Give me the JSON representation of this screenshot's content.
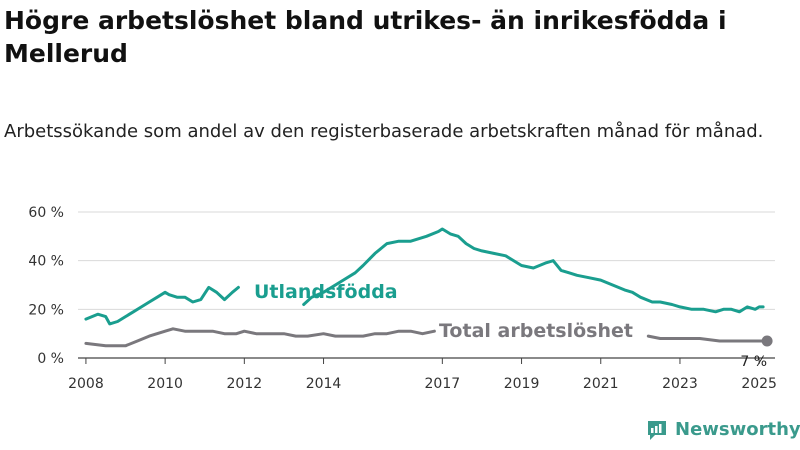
{
  "title": "Högre arbetslöshet bland utrikes- än inrikesfödda i Mellerud",
  "subtitle": "Arbetssökande som andel av den registerbaserade arbetskraften månad för månad.",
  "brand": {
    "name": "Newsworthy",
    "icon": "newsworthy-logo-icon"
  },
  "colors": {
    "foreign": "#1a9e8f",
    "total": "#7a787d",
    "grid": "#d9d9d9",
    "axis": "#444444",
    "brand": "#3a9a8c"
  },
  "chart_data": {
    "type": "line",
    "title": "Högre arbetslöshet bland utrikes- än inrikesfödda i Mellerud",
    "xlabel": "",
    "ylabel": "",
    "xlim": [
      2007.8,
      2025.4
    ],
    "ylim": [
      0,
      60
    ],
    "yticks": [
      0,
      20,
      40,
      60
    ],
    "ytick_labels": [
      "0 %",
      "20 %",
      "40 %",
      "60 %"
    ],
    "xticks": [
      2008,
      2010,
      2012,
      2014,
      2017,
      2019,
      2021,
      2023,
      2025
    ],
    "xtick_labels": [
      "2008",
      "2010",
      "2012",
      "2014",
      "2017",
      "2019",
      "2021",
      "2023",
      "2025"
    ],
    "grid": true,
    "series": [
      {
        "name": "Utlandsfödda",
        "color": "#1a9e8f",
        "x": [
          2008.0,
          2008.3,
          2008.5,
          2008.6,
          2008.8,
          2009.0,
          2009.2,
          2009.4,
          2009.6,
          2009.8,
          2010.0,
          2010.1,
          2010.3,
          2010.5,
          2010.7,
          2010.9,
          2011.1,
          2011.3,
          2011.5,
          2011.7,
          2011.85,
          2013.5,
          2013.7,
          2014.0,
          2014.5,
          2014.8,
          2015.0,
          2015.3,
          2015.6,
          2015.9,
          2016.2,
          2016.6,
          2016.9,
          2017.0,
          2017.2,
          2017.4,
          2017.6,
          2017.8,
          2018.0,
          2018.3,
          2018.6,
          2018.9,
          2019.0,
          2019.3,
          2019.6,
          2019.8,
          2020.0,
          2020.2,
          2020.4,
          2020.7,
          2021.0,
          2021.3,
          2021.6,
          2021.8,
          2022.0,
          2022.3,
          2022.5,
          2022.8,
          2023.0,
          2023.3,
          2023.6,
          2023.9,
          2024.1,
          2024.3,
          2024.5,
          2024.7,
          2024.9,
          2025.0,
          2025.1
        ],
        "values": [
          16,
          18,
          17,
          14,
          15,
          17,
          19,
          21,
          23,
          25,
          27,
          26,
          25,
          25,
          23,
          24,
          29,
          27,
          24,
          27,
          29,
          22,
          25,
          27,
          32,
          35,
          38,
          43,
          47,
          48,
          48,
          50,
          52,
          53,
          51,
          50,
          47,
          45,
          44,
          43,
          42,
          39,
          38,
          37,
          39,
          40,
          36,
          35,
          34,
          33,
          32,
          30,
          28,
          27,
          25,
          23,
          23,
          22,
          21,
          20,
          20,
          19,
          20,
          20,
          19,
          21,
          20,
          21,
          21
        ]
      },
      {
        "name": "Total arbetslöshet",
        "color": "#7a787d",
        "x": [
          2008.0,
          2008.5,
          2009.0,
          2009.3,
          2009.6,
          2010.0,
          2010.2,
          2010.5,
          2010.8,
          2011.0,
          2011.2,
          2011.5,
          2011.8,
          2012.0,
          2012.3,
          2012.6,
          2013.0,
          2013.3,
          2013.6,
          2014.0,
          2014.3,
          2014.6,
          2015.0,
          2015.3,
          2015.6,
          2015.9,
          2016.2,
          2016.5,
          2016.8,
          2022.2,
          2022.5,
          2023.0,
          2023.5,
          2024.0,
          2024.3,
          2024.6,
          2024.8,
          2025.0,
          2025.2
        ],
        "values": [
          6,
          5,
          5,
          7,
          9,
          11,
          12,
          11,
          11,
          11,
          11,
          10,
          10,
          11,
          10,
          10,
          10,
          9,
          9,
          10,
          9,
          9,
          9,
          10,
          10,
          11,
          11,
          10,
          11,
          9,
          8,
          8,
          8,
          7,
          7,
          7,
          7,
          7,
          7
        ]
      }
    ],
    "annotations": [
      {
        "text": "Utlandsfödda",
        "series": 0
      },
      {
        "text": "Total arbetslöshet",
        "series": 1
      },
      {
        "text": "7 %",
        "series": 1,
        "x": 2025.2,
        "y": 7
      }
    ]
  }
}
